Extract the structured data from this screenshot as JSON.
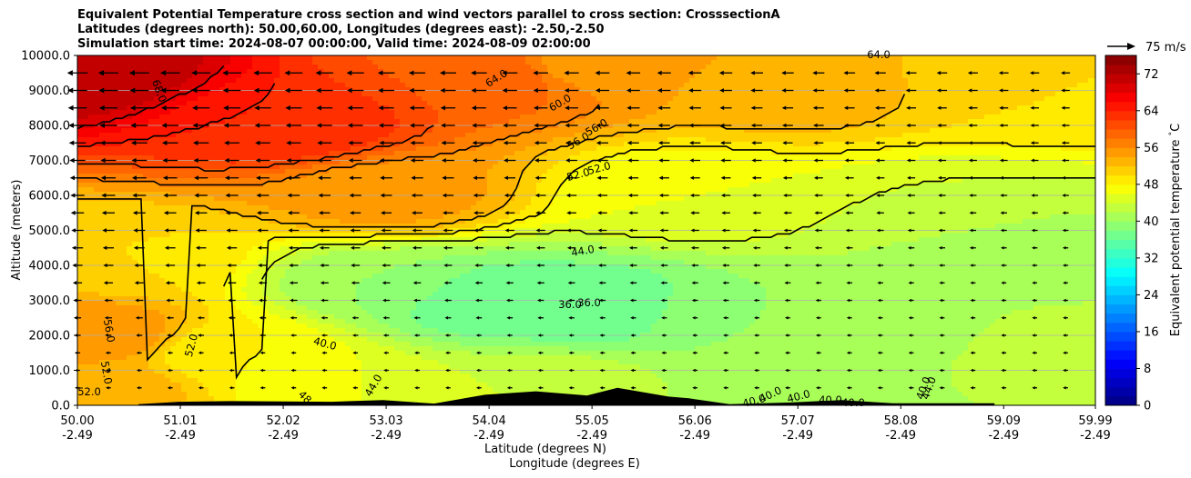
{
  "header": {
    "title_line1": "Equivalent Potential Temperature cross section and wind vectors parallel to cross section: CrosssectionA",
    "title_line2": "Latitudes (degrees north): 50.00,60.00, Longitudes (degrees east): -2.50,-2.50",
    "title_line3": "Simulation start time: 2024-08-07 00:00:00, Valid time: 2024-08-09 02:00:00"
  },
  "chart_data": {
    "type": "heatmap",
    "ylabel": "Altitude (meters)",
    "xlabel_lat": "Latitude (degrees N)",
    "xlabel_lon": "Longitude (degrees E)",
    "ylim": [
      0,
      10000
    ],
    "xlim": [
      50.0,
      59.99
    ],
    "yticks": [
      "0.0",
      "1000.0",
      "2000.0",
      "3000.0",
      "4000.0",
      "5000.0",
      "6000.0",
      "7000.0",
      "8000.0",
      "9000.0",
      "10000.0"
    ],
    "ytick_values": [
      0,
      1000,
      2000,
      3000,
      4000,
      5000,
      6000,
      7000,
      8000,
      9000,
      10000
    ],
    "xticks_lat": [
      "50.00",
      "51.01",
      "52.02",
      "53.03",
      "54.04",
      "55.05",
      "56.06",
      "57.07",
      "58.08",
      "59.09",
      "59.99"
    ],
    "xticks_lon": [
      "-2.49",
      "-2.49",
      "-2.49",
      "-2.49",
      "-2.49",
      "-2.49",
      "-2.49",
      "-2.49",
      "-2.49",
      "-2.49",
      "-2.49"
    ],
    "grid": "horizontal",
    "colorbar": {
      "label": "Equivalent potential temperature $^\\circ$C",
      "ticks": [
        "0",
        "8",
        "16",
        "24",
        "32",
        "40",
        "48",
        "56",
        "64",
        "72"
      ],
      "tick_values": [
        0,
        8,
        16,
        24,
        32,
        40,
        48,
        56,
        64,
        72
      ],
      "range": [
        0,
        76
      ],
      "colormap": "jet"
    },
    "quiver_key": {
      "label": "75 m/s",
      "value": 75
    },
    "wind_direction": "southward (toward lower latitude)",
    "contour_labels": [
      "68.0",
      "64.0",
      "64.0",
      "60.0",
      "56.0",
      "56.0",
      "52.0",
      "52.0",
      "44.0",
      "36.0",
      "36.0",
      "40.0",
      "44.0",
      "48",
      "56.0",
      "52.0",
      "52.0",
      "52.0",
      "40.0",
      "40.0",
      "40.0",
      "40.0",
      "40.0",
      "40.0",
      "40.0",
      "44.0"
    ],
    "field_anchors": [
      {
        "lat": 50.0,
        "alt": 9500,
        "theta_e": 72
      },
      {
        "lat": 52.0,
        "alt": 8000,
        "theta_e": 64
      },
      {
        "lat": 53.0,
        "alt": 6000,
        "theta_e": 55
      },
      {
        "lat": 54.0,
        "alt": 9500,
        "theta_e": 60
      },
      {
        "lat": 55.0,
        "alt": 9800,
        "theta_e": 55
      },
      {
        "lat": 57.0,
        "alt": 9000,
        "theta_e": 53
      },
      {
        "lat": 59.5,
        "alt": 9000,
        "theta_e": 50
      },
      {
        "lat": 56.0,
        "alt": 6000,
        "theta_e": 46
      },
      {
        "lat": 58.5,
        "alt": 5500,
        "theta_e": 44
      },
      {
        "lat": 54.0,
        "alt": 3000,
        "theta_e": 36
      },
      {
        "lat": 55.0,
        "alt": 2800,
        "theta_e": 36
      },
      {
        "lat": 53.0,
        "alt": 3500,
        "theta_e": 40
      },
      {
        "lat": 56.5,
        "alt": 2500,
        "theta_e": 40
      },
      {
        "lat": 58.0,
        "alt": 2000,
        "theta_e": 41
      },
      {
        "lat": 59.5,
        "alt": 1500,
        "theta_e": 43
      },
      {
        "lat": 50.2,
        "alt": 2000,
        "theta_e": 56
      },
      {
        "lat": 50.3,
        "alt": 500,
        "theta_e": 53
      },
      {
        "lat": 51.5,
        "alt": 1500,
        "theta_e": 48
      },
      {
        "lat": 50.5,
        "alt": 4200,
        "theta_e": 50
      },
      {
        "lat": 52.5,
        "alt": 500,
        "theta_e": 46
      },
      {
        "lat": 54.5,
        "alt": 500,
        "theta_e": 44
      },
      {
        "lat": 57.0,
        "alt": 500,
        "theta_e": 41
      },
      {
        "lat": 59.0,
        "alt": 4500,
        "theta_e": 40
      }
    ],
    "terrain_profile": [
      {
        "lat": 50.6,
        "alt": 30
      },
      {
        "lat": 51.0,
        "alt": 100
      },
      {
        "lat": 51.5,
        "alt": 120
      },
      {
        "lat": 52.5,
        "alt": 100
      },
      {
        "lat": 53.0,
        "alt": 150
      },
      {
        "lat": 53.5,
        "alt": 50
      },
      {
        "lat": 54.0,
        "alt": 300
      },
      {
        "lat": 54.5,
        "alt": 400
      },
      {
        "lat": 55.0,
        "alt": 280
      },
      {
        "lat": 55.3,
        "alt": 500
      },
      {
        "lat": 55.8,
        "alt": 250
      },
      {
        "lat": 56.0,
        "alt": 200
      },
      {
        "lat": 56.4,
        "alt": 30
      },
      {
        "lat": 57.0,
        "alt": 80
      },
      {
        "lat": 57.5,
        "alt": 150
      },
      {
        "lat": 58.0,
        "alt": 60
      },
      {
        "lat": 59.0,
        "alt": 60
      }
    ]
  }
}
